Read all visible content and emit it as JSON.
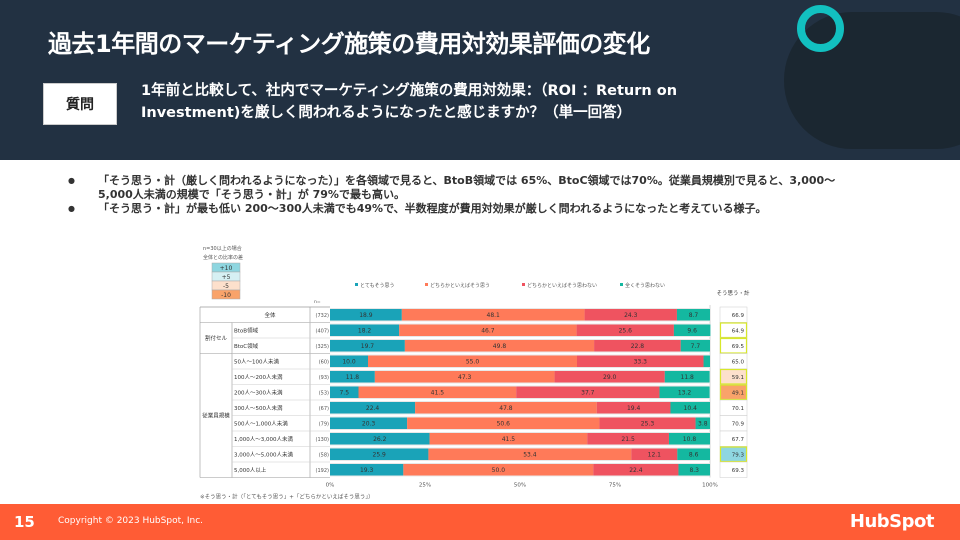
{
  "header": {
    "title": "過去1年間のマーケティング施策の費用対効果評価の変化",
    "question_label": "質問",
    "question": "1年前と比較して、社内でマーケティング施策の費用対効果：（ROI ：Return on Investment)を厳しく問われるようになったと感じますか？（単一回答）"
  },
  "bullets": [
    "「そう思う・計（厳しく問われるようになった）」を各領域で見ると、BtoB領域では 65%、BtoC領域では70%。従業員規模別で見ると、3,000～5,000人未満の規模で「そう思う・計」が 79%で最も高い。",
    "「そう思う・計」が最も低い 200～300人未満でも49%で、半数程度が費用対効果が厳しく問われるようになったと考えている様子。"
  ],
  "footer": {
    "page": "15",
    "copyright": "Copyright © 2023 HubSpot, Inc.",
    "logo": "HubSpot"
  },
  "colors": {
    "header_bg": "#223142",
    "accent_ring": "#12c0c0",
    "footer_bg": "#ff5c35"
  },
  "chart_data": {
    "type": "bar",
    "stacked": true,
    "orientation": "horizontal",
    "note_title": "n=30以上の場合",
    "note_subtitle": "全体との比率の差",
    "diff_legend": [
      {
        "label": "+10",
        "color": "#8ed6e0"
      },
      {
        "label": "+5",
        "color": "#d6f0f3"
      },
      {
        "label": "-5",
        "color": "#fde0cc"
      },
      {
        "label": "-10",
        "color": "#f9a36a"
      }
    ],
    "n_header": "n=",
    "total_header": "そう思う・計",
    "series": [
      {
        "name": "とてもそう思う",
        "color": "#1aa3b8"
      },
      {
        "name": "どちらかといえばそう思う",
        "color": "#ff7a59"
      },
      {
        "name": "どちらかといえばそう思わない",
        "color": "#ef5360"
      },
      {
        "name": "全くそう思わない",
        "color": "#14b8a0"
      }
    ],
    "groups": [
      {
        "label": "",
        "rows": 1
      },
      {
        "label": "割付セル",
        "rows": 2
      },
      {
        "label": "従業員規模",
        "rows": 8
      }
    ],
    "rows": [
      {
        "label": "全体",
        "n": "(732)",
        "values": [
          18.9,
          48.1,
          24.3,
          8.7
        ],
        "total": "66.9",
        "hl": ""
      },
      {
        "label": "BtoB領域",
        "n": "(407)",
        "values": [
          18.2,
          46.7,
          25.6,
          9.6
        ],
        "total": "64.9",
        "hl": "border"
      },
      {
        "label": "BtoC領域",
        "n": "(325)",
        "values": [
          19.7,
          49.8,
          22.8,
          7.7
        ],
        "total": "69.5",
        "hl": "border"
      },
      {
        "label": "50人～100人未満",
        "n": "(60)",
        "values": [
          10.0,
          55.0,
          33.3,
          1.7
        ],
        "total": "65.0",
        "hl": ""
      },
      {
        "label": "100人～200人未満",
        "n": "(93)",
        "values": [
          11.8,
          47.3,
          29.0,
          11.8
        ],
        "total": "59.1",
        "hl": "-5"
      },
      {
        "label": "200人～300人未満",
        "n": "(53)",
        "values": [
          7.5,
          41.5,
          37.7,
          13.2
        ],
        "total": "49.1",
        "hl": "-10"
      },
      {
        "label": "300人～500人未満",
        "n": "(67)",
        "values": [
          22.4,
          47.8,
          19.4,
          10.4
        ],
        "total": "70.1",
        "hl": ""
      },
      {
        "label": "500人～1,000人未満",
        "n": "(79)",
        "values": [
          20.3,
          50.6,
          25.3,
          3.8
        ],
        "total": "70.9",
        "hl": ""
      },
      {
        "label": "1,000人～3,000人未満",
        "n": "(130)",
        "values": [
          26.2,
          41.5,
          21.5,
          10.8
        ],
        "total": "67.7",
        "hl": ""
      },
      {
        "label": "3,000人～5,000人未満",
        "n": "(58)",
        "values": [
          25.9,
          53.4,
          12.1,
          8.6
        ],
        "total": "79.3",
        "hl": "+10"
      },
      {
        "label": "5,000人以上",
        "n": "(192)",
        "values": [
          19.3,
          50.0,
          22.4,
          8.3
        ],
        "total": "69.3",
        "hl": ""
      }
    ],
    "x_ticks": [
      "0%",
      "25%",
      "50%",
      "75%",
      "100%"
    ],
    "xlim": [
      0,
      100
    ],
    "footnote": "※そう思う・計（「とてもそう思う」+「どちらかといえばそう思う」）"
  }
}
